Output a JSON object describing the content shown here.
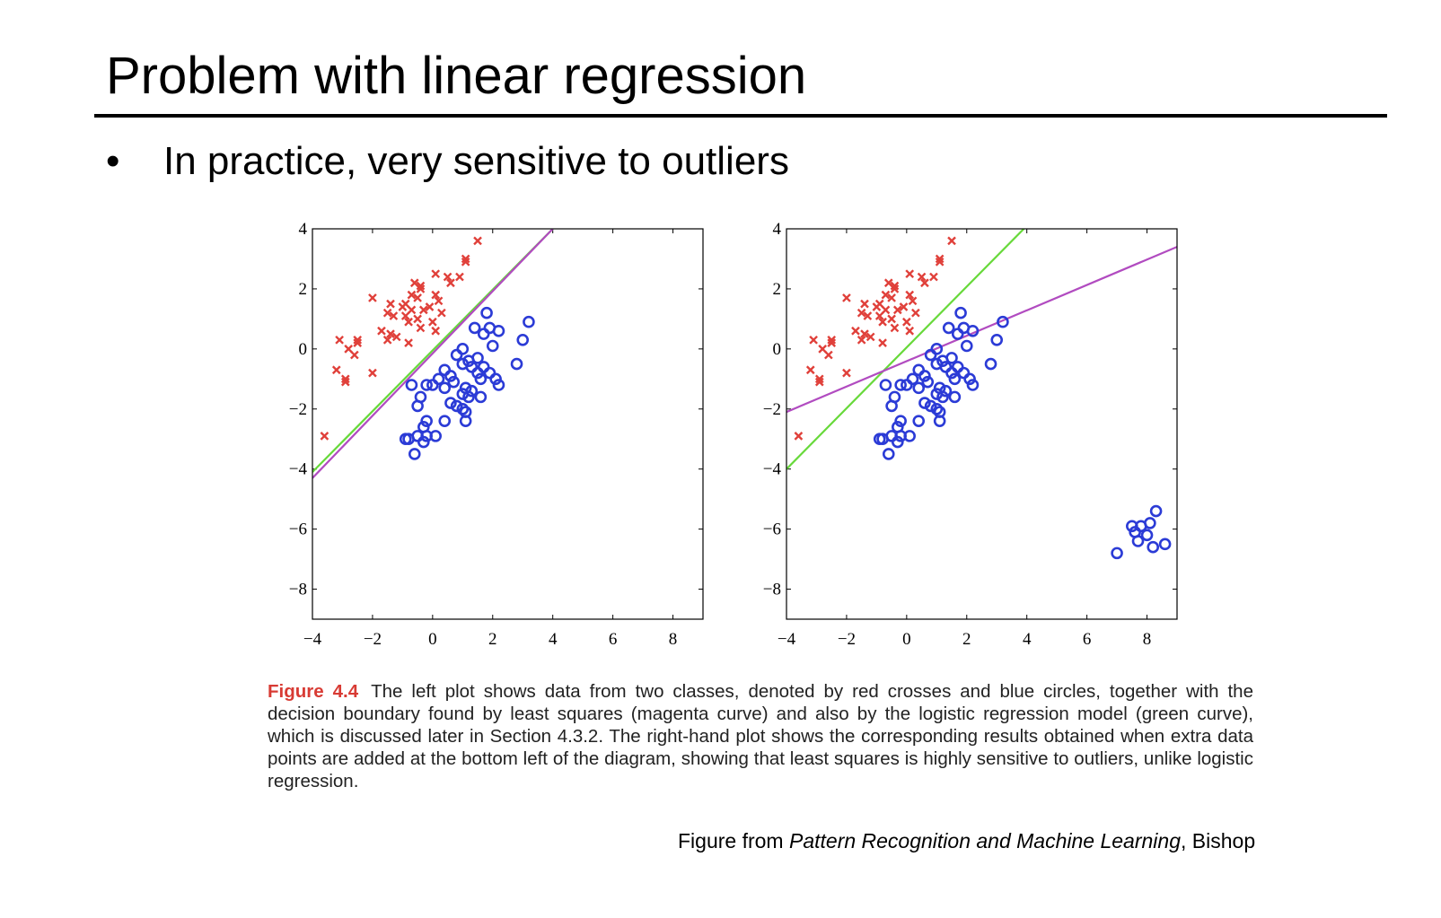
{
  "slide": {
    "title": "Problem with linear regression",
    "bullet_symbol": "•",
    "bullet": "In practice, very sensitive to outliers"
  },
  "caption": {
    "label": "Figure 4.4",
    "text": "The left plot shows data from two classes, denoted by red crosses and blue circles, together with the decision boundary found by least squares (magenta curve) and also by the logistic regression model (green curve), which is discussed later in Section 4.3.2. The right-hand plot shows the corresponding results obtained when extra data points are added at the bottom left of the diagram, showing that least squares is highly sensitive to outliers, unlike logistic regression."
  },
  "source": {
    "prefix": "Figure from ",
    "book": "Pattern Recognition and Machine Learning",
    "suffix": ", Bishop"
  },
  "colors": {
    "red_cross": "#e0403a",
    "blue_circle": "#2b3bd6",
    "least_squares": "#b14bc0",
    "logistic": "#67d93a",
    "caption_label": "#d83b34"
  },
  "chart_data": [
    {
      "type": "scatter",
      "title": "",
      "xlim": [
        -4,
        9
      ],
      "ylim": [
        -9,
        4
      ],
      "xticks": [
        -4,
        -2,
        0,
        2,
        4,
        6,
        8
      ],
      "yticks": [
        4,
        2,
        0,
        -2,
        -4,
        -6,
        -8
      ],
      "xtick_labels": [
        "−4",
        "−2",
        "0",
        "2",
        "4",
        "6",
        "8"
      ],
      "ytick_labels": [
        "4",
        "2",
        "0",
        "−2",
        "−4",
        "−6",
        "−8"
      ],
      "grid": false,
      "series": [
        {
          "marker": "cross",
          "color": "#e0403a",
          "points": [
            [
              1.5,
              3.6
            ],
            [
              1.1,
              3.0
            ],
            [
              1.1,
              2.9
            ],
            [
              0.1,
              2.5
            ],
            [
              0.5,
              2.4
            ],
            [
              0.9,
              2.4
            ],
            [
              0.6,
              2.2
            ],
            [
              -0.6,
              2.2
            ],
            [
              -0.4,
              2.1
            ],
            [
              -0.4,
              2.0
            ],
            [
              -0.7,
              1.8
            ],
            [
              -0.5,
              1.7
            ],
            [
              0.1,
              1.8
            ],
            [
              0.2,
              1.6
            ],
            [
              -2.0,
              1.7
            ],
            [
              -1.4,
              1.5
            ],
            [
              -1.0,
              1.4
            ],
            [
              -0.9,
              1.5
            ],
            [
              -0.7,
              1.3
            ],
            [
              -0.3,
              1.3
            ],
            [
              -0.1,
              1.4
            ],
            [
              0.3,
              1.2
            ],
            [
              -1.5,
              1.2
            ],
            [
              -1.3,
              1.1
            ],
            [
              -0.9,
              1.1
            ],
            [
              -0.8,
              0.9
            ],
            [
              -0.5,
              1.0
            ],
            [
              0.0,
              0.9
            ],
            [
              -1.7,
              0.6
            ],
            [
              -1.4,
              0.5
            ],
            [
              -1.2,
              0.4
            ],
            [
              -1.5,
              0.3
            ],
            [
              -0.8,
              0.2
            ],
            [
              -0.4,
              0.7
            ],
            [
              0.1,
              0.6
            ],
            [
              -3.1,
              0.3
            ],
            [
              -2.8,
              0.0
            ],
            [
              -2.5,
              0.3
            ],
            [
              -2.5,
              0.2
            ],
            [
              -2.6,
              -0.2
            ],
            [
              -3.2,
              -0.7
            ],
            [
              -2.9,
              -1.0
            ],
            [
              -2.9,
              -1.1
            ],
            [
              -2.0,
              -0.8
            ],
            [
              -3.6,
              -2.9
            ]
          ]
        },
        {
          "marker": "circle",
          "color": "#2b3bd6",
          "points": [
            [
              1.8,
              1.2
            ],
            [
              1.4,
              0.7
            ],
            [
              1.9,
              0.7
            ],
            [
              2.2,
              0.6
            ],
            [
              3.2,
              0.9
            ],
            [
              3.0,
              0.3
            ],
            [
              1.7,
              0.5
            ],
            [
              2.0,
              0.1
            ],
            [
              1.0,
              0.0
            ],
            [
              0.8,
              -0.2
            ],
            [
              1.2,
              -0.4
            ],
            [
              1.5,
              -0.3
            ],
            [
              1.0,
              -0.5
            ],
            [
              1.3,
              -0.6
            ],
            [
              1.7,
              -0.6
            ],
            [
              1.5,
              -0.8
            ],
            [
              1.9,
              -0.8
            ],
            [
              2.1,
              -1.0
            ],
            [
              1.6,
              -1.0
            ],
            [
              2.2,
              -1.2
            ],
            [
              2.8,
              -0.5
            ],
            [
              0.4,
              -0.7
            ],
            [
              0.6,
              -0.9
            ],
            [
              0.2,
              -1.0
            ],
            [
              0.7,
              -1.1
            ],
            [
              0.0,
              -1.2
            ],
            [
              -0.2,
              -1.2
            ],
            [
              -0.7,
              -1.2
            ],
            [
              0.4,
              -1.3
            ],
            [
              1.1,
              -1.3
            ],
            [
              1.3,
              -1.4
            ],
            [
              1.0,
              -1.5
            ],
            [
              1.2,
              -1.6
            ],
            [
              1.6,
              -1.6
            ],
            [
              -0.4,
              -1.6
            ],
            [
              0.6,
              -1.8
            ],
            [
              0.8,
              -1.9
            ],
            [
              1.0,
              -2.0
            ],
            [
              1.1,
              -2.1
            ],
            [
              -0.5,
              -1.9
            ],
            [
              0.4,
              -2.4
            ],
            [
              1.1,
              -2.4
            ],
            [
              -0.2,
              -2.4
            ],
            [
              -0.3,
              -2.6
            ],
            [
              -0.2,
              -2.9
            ],
            [
              0.1,
              -2.9
            ],
            [
              -0.5,
              -2.9
            ],
            [
              -0.9,
              -3.0
            ],
            [
              -0.8,
              -3.0
            ],
            [
              -0.3,
              -3.1
            ],
            [
              -0.6,
              -3.5
            ]
          ]
        }
      ],
      "lines": [
        {
          "name": "logistic",
          "color": "#67d93a",
          "points": [
            [
              -4,
              -4.1
            ],
            [
              4,
              4.0
            ]
          ]
        },
        {
          "name": "least squares",
          "color": "#b14bc0",
          "points": [
            [
              -4,
              -4.3
            ],
            [
              4,
              4.0
            ]
          ]
        }
      ]
    },
    {
      "type": "scatter",
      "title": "",
      "xlim": [
        -4,
        9
      ],
      "ylim": [
        -9,
        4
      ],
      "xticks": [
        -4,
        -2,
        0,
        2,
        4,
        6,
        8
      ],
      "yticks": [
        4,
        2,
        0,
        -2,
        -4,
        -6,
        -8
      ],
      "xtick_labels": [
        "−4",
        "−2",
        "0",
        "2",
        "4",
        "6",
        "8"
      ],
      "ytick_labels": [
        "4",
        "2",
        "0",
        "−2",
        "−4",
        "−6",
        "−8"
      ],
      "grid": false,
      "series": [
        {
          "marker": "cross",
          "color": "#e0403a",
          "points": [
            [
              1.5,
              3.6
            ],
            [
              1.1,
              3.0
            ],
            [
              1.1,
              2.9
            ],
            [
              0.1,
              2.5
            ],
            [
              0.5,
              2.4
            ],
            [
              0.9,
              2.4
            ],
            [
              0.6,
              2.2
            ],
            [
              -0.6,
              2.2
            ],
            [
              -0.4,
              2.1
            ],
            [
              -0.4,
              2.0
            ],
            [
              -0.7,
              1.8
            ],
            [
              -0.5,
              1.7
            ],
            [
              0.1,
              1.8
            ],
            [
              0.2,
              1.6
            ],
            [
              -2.0,
              1.7
            ],
            [
              -1.4,
              1.5
            ],
            [
              -1.0,
              1.4
            ],
            [
              -0.9,
              1.5
            ],
            [
              -0.7,
              1.3
            ],
            [
              -0.3,
              1.3
            ],
            [
              -0.1,
              1.4
            ],
            [
              0.3,
              1.2
            ],
            [
              -1.5,
              1.2
            ],
            [
              -1.3,
              1.1
            ],
            [
              -0.9,
              1.1
            ],
            [
              -0.8,
              0.9
            ],
            [
              -0.5,
              1.0
            ],
            [
              0.0,
              0.9
            ],
            [
              -1.7,
              0.6
            ],
            [
              -1.4,
              0.5
            ],
            [
              -1.2,
              0.4
            ],
            [
              -1.5,
              0.3
            ],
            [
              -0.8,
              0.2
            ],
            [
              -0.4,
              0.7
            ],
            [
              0.1,
              0.6
            ],
            [
              -3.1,
              0.3
            ],
            [
              -2.8,
              0.0
            ],
            [
              -2.5,
              0.3
            ],
            [
              -2.5,
              0.2
            ],
            [
              -2.6,
              -0.2
            ],
            [
              -3.2,
              -0.7
            ],
            [
              -2.9,
              -1.0
            ],
            [
              -2.9,
              -1.1
            ],
            [
              -2.0,
              -0.8
            ],
            [
              -3.6,
              -2.9
            ]
          ]
        },
        {
          "marker": "circle",
          "color": "#2b3bd6",
          "points": [
            [
              1.8,
              1.2
            ],
            [
              1.4,
              0.7
            ],
            [
              1.9,
              0.7
            ],
            [
              2.2,
              0.6
            ],
            [
              3.2,
              0.9
            ],
            [
              3.0,
              0.3
            ],
            [
              1.7,
              0.5
            ],
            [
              2.0,
              0.1
            ],
            [
              1.0,
              0.0
            ],
            [
              0.8,
              -0.2
            ],
            [
              1.2,
              -0.4
            ],
            [
              1.5,
              -0.3
            ],
            [
              1.0,
              -0.5
            ],
            [
              1.3,
              -0.6
            ],
            [
              1.7,
              -0.6
            ],
            [
              1.5,
              -0.8
            ],
            [
              1.9,
              -0.8
            ],
            [
              2.1,
              -1.0
            ],
            [
              1.6,
              -1.0
            ],
            [
              2.2,
              -1.2
            ],
            [
              2.8,
              -0.5
            ],
            [
              0.4,
              -0.7
            ],
            [
              0.6,
              -0.9
            ],
            [
              0.2,
              -1.0
            ],
            [
              0.7,
              -1.1
            ],
            [
              0.0,
              -1.2
            ],
            [
              -0.2,
              -1.2
            ],
            [
              -0.7,
              -1.2
            ],
            [
              0.4,
              -1.3
            ],
            [
              1.1,
              -1.3
            ],
            [
              1.3,
              -1.4
            ],
            [
              1.0,
              -1.5
            ],
            [
              1.2,
              -1.6
            ],
            [
              1.6,
              -1.6
            ],
            [
              -0.4,
              -1.6
            ],
            [
              0.6,
              -1.8
            ],
            [
              0.8,
              -1.9
            ],
            [
              1.0,
              -2.0
            ],
            [
              1.1,
              -2.1
            ],
            [
              -0.5,
              -1.9
            ],
            [
              0.4,
              -2.4
            ],
            [
              1.1,
              -2.4
            ],
            [
              -0.2,
              -2.4
            ],
            [
              -0.3,
              -2.6
            ],
            [
              -0.2,
              -2.9
            ],
            [
              0.1,
              -2.9
            ],
            [
              -0.5,
              -2.9
            ],
            [
              -0.9,
              -3.0
            ],
            [
              -0.8,
              -3.0
            ],
            [
              -0.3,
              -3.1
            ],
            [
              -0.6,
              -3.5
            ],
            [
              8.3,
              -5.4
            ],
            [
              7.5,
              -5.9
            ],
            [
              7.8,
              -5.9
            ],
            [
              8.1,
              -5.8
            ],
            [
              7.6,
              -6.1
            ],
            [
              8.0,
              -6.2
            ],
            [
              7.7,
              -6.4
            ],
            [
              8.2,
              -6.6
            ],
            [
              8.6,
              -6.5
            ],
            [
              7.0,
              -6.8
            ]
          ]
        }
      ],
      "lines": [
        {
          "name": "logistic",
          "color": "#67d93a",
          "points": [
            [
              -4,
              -4.0
            ],
            [
              3.9,
              4.0
            ]
          ]
        },
        {
          "name": "least squares",
          "color": "#b14bc0",
          "points": [
            [
              -4,
              -2.1
            ],
            [
              9,
              3.4
            ]
          ]
        }
      ]
    }
  ]
}
